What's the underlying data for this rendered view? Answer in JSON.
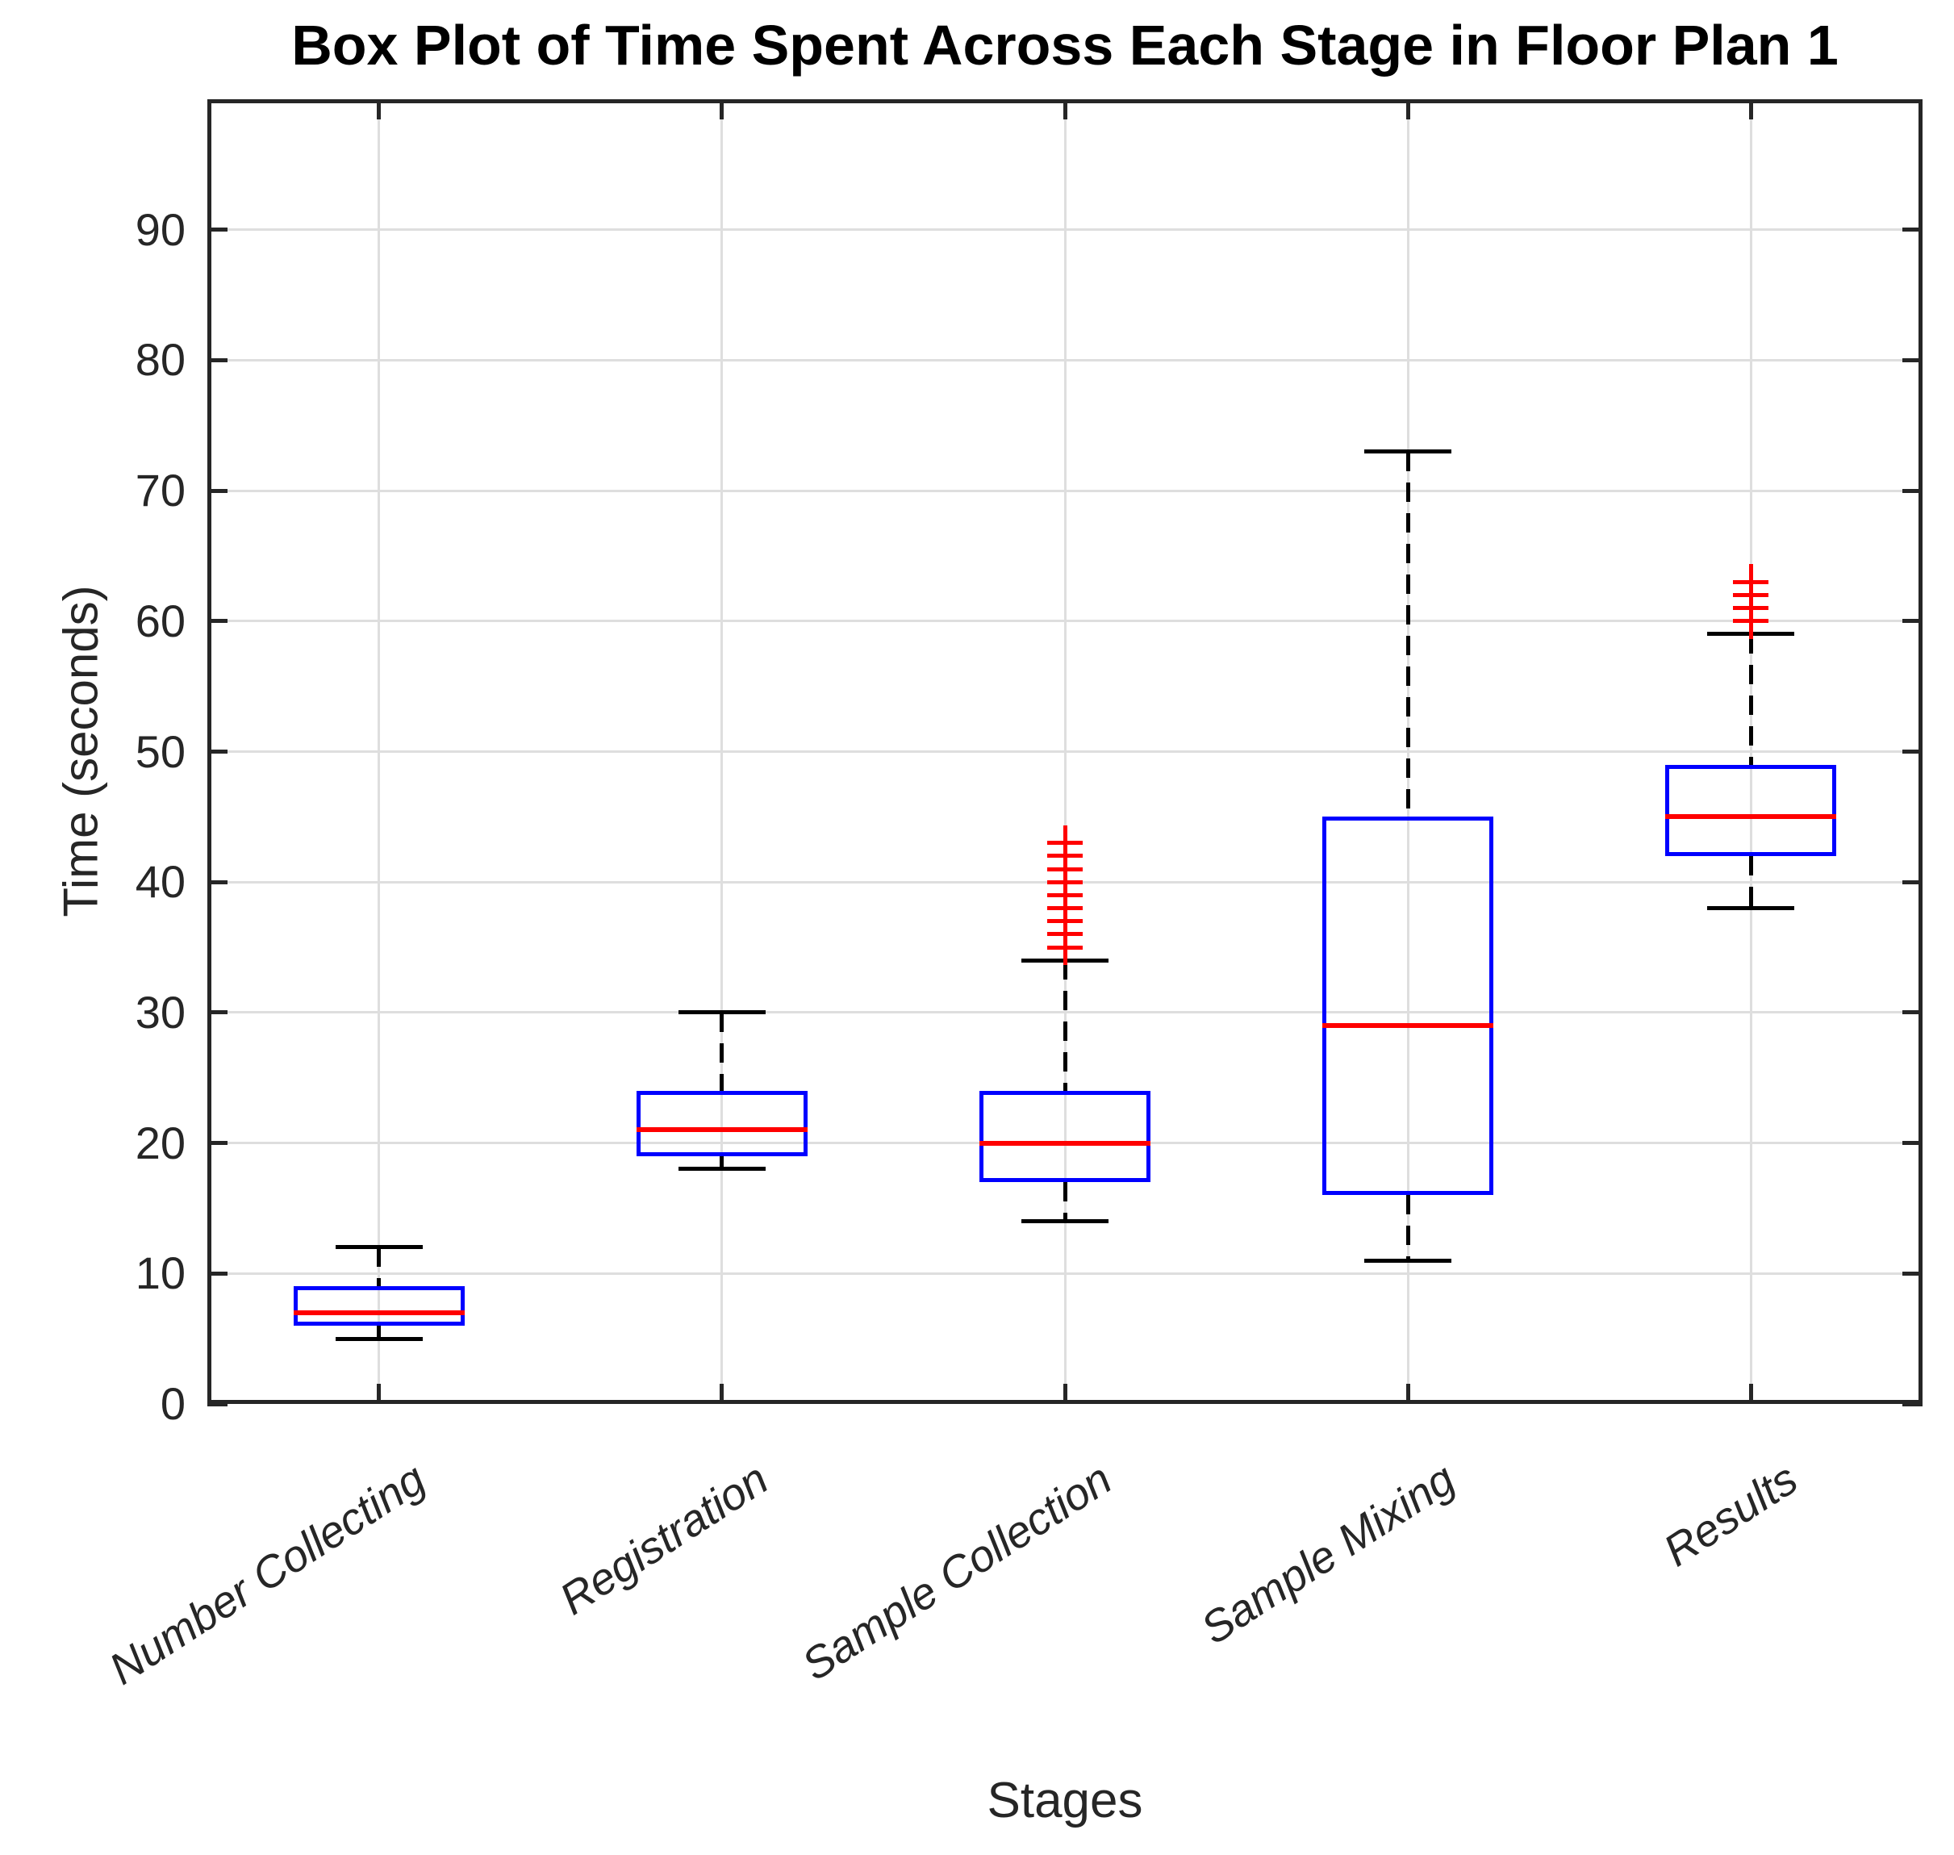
{
  "chart_data": {
    "type": "boxplot",
    "title": "Box Plot of Time Spent Across Each Stage in Floor Plan 1",
    "xlabel": "Stages",
    "ylabel": "Time (seconds)",
    "ylim": [
      0,
      100
    ],
    "yticks": [
      0,
      10,
      20,
      30,
      40,
      50,
      60,
      70,
      80,
      90
    ],
    "grid": true,
    "legend": "none",
    "categories": [
      "Number Collecting",
      "Registration",
      "Sample Collection",
      "Sample Mixing",
      "Results"
    ],
    "series": [
      {
        "category": "Number Collecting",
        "whisker_low": 5,
        "q1": 6,
        "median": 7,
        "q3": 9,
        "whisker_high": 12,
        "outliers": []
      },
      {
        "category": "Registration",
        "whisker_low": 18,
        "q1": 19,
        "median": 21,
        "q3": 24,
        "whisker_high": 30,
        "outliers": []
      },
      {
        "category": "Sample Collection",
        "whisker_low": 14,
        "q1": 17,
        "median": 20,
        "q3": 24,
        "whisker_high": 34,
        "outliers": [
          35,
          36,
          37,
          38,
          39,
          40,
          41,
          42,
          43
        ]
      },
      {
        "category": "Sample Mixing",
        "whisker_low": 11,
        "q1": 16,
        "median": 29,
        "q3": 45,
        "whisker_high": 73,
        "outliers": []
      },
      {
        "category": "Results",
        "whisker_low": 38,
        "q1": 42,
        "median": 45,
        "q3": 49,
        "whisker_high": 59,
        "outliers": [
          60,
          61,
          62,
          63
        ]
      }
    ],
    "colors": {
      "box": "#0000ff",
      "median": "#ff0000",
      "outlier": "#ff0000",
      "whisker": "#000000",
      "axis": "#262626",
      "grid": "#dedede",
      "text": "#262626",
      "title": "#000000",
      "background": "#ffffff"
    }
  }
}
